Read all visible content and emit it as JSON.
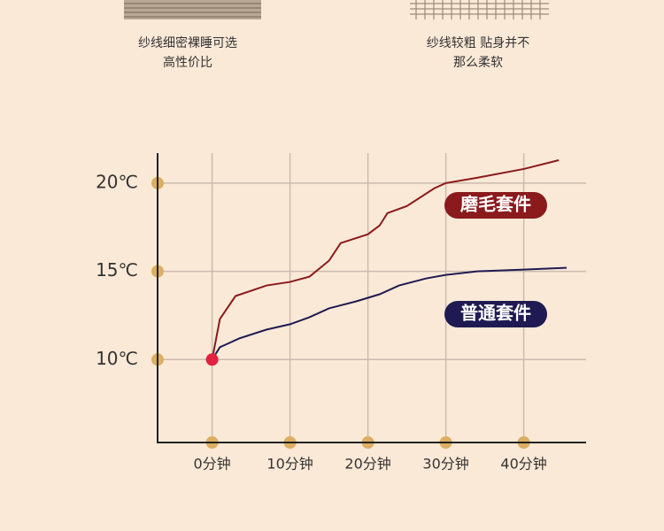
{
  "captions": [
    [
      "纱线细密裸睡可选",
      "高性价比"
    ],
    [
      "纱线较粗 贴身并不",
      "那么柔软"
    ]
  ],
  "chart_data": {
    "type": "line",
    "xlim": [
      -7,
      48
    ],
    "xticks": [
      {
        "value": 0,
        "label": "0分钟"
      },
      {
        "value": 10,
        "label": "10分钟"
      },
      {
        "value": 20,
        "label": "20分钟"
      },
      {
        "value": 30,
        "label": "30分钟"
      },
      {
        "value": 40,
        "label": "40分钟"
      }
    ],
    "ylim": [
      5.3,
      21.7
    ],
    "yticks": [
      {
        "value": 10,
        "label": "10℃"
      },
      {
        "value": 15,
        "label": "15℃"
      },
      {
        "value": 20,
        "label": "20℃"
      }
    ],
    "grid": true,
    "series": [
      {
        "name": "磨毛套件",
        "color": "#8a1a1c",
        "x": [
          0,
          1,
          3,
          7,
          10,
          12.5,
          15,
          16.5,
          20,
          21.5,
          22.5,
          25,
          28.5,
          30,
          34,
          40,
          44.5
        ],
        "values": [
          10,
          12.3,
          13.6,
          14.2,
          14.4,
          14.7,
          15.6,
          16.6,
          17.1,
          17.6,
          18.3,
          18.7,
          19.7,
          20,
          20.3,
          20.8,
          21.3
        ]
      },
      {
        "name": "普通套件",
        "color": "#1f1b52",
        "x": [
          0,
          1,
          3.5,
          7,
          10,
          12.5,
          15,
          18.5,
          21.5,
          24,
          27.5,
          30,
          34,
          40,
          45.5
        ],
        "values": [
          10,
          10.7,
          11.2,
          11.7,
          12,
          12.4,
          12.9,
          13.3,
          13.7,
          14.2,
          14.6,
          14.8,
          15,
          15.1,
          15.2
        ]
      }
    ]
  }
}
